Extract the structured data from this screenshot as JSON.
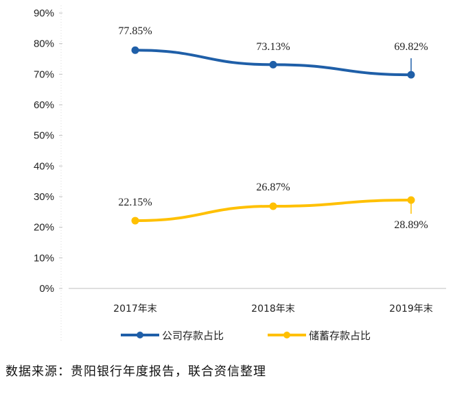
{
  "chart_data": {
    "type": "line",
    "categories": [
      "2017年末",
      "2018年末",
      "2019年末"
    ],
    "series": [
      {
        "name": "公司存款占比",
        "values": [
          77.85,
          73.13,
          69.82
        ],
        "labels": [
          "77.85%",
          "73.13%",
          "69.82%"
        ],
        "color": "#1f5fa8"
      },
      {
        "name": "储蓄存款占比",
        "values": [
          22.15,
          26.87,
          28.89
        ],
        "labels": [
          "22.15%",
          "26.87%",
          "28.89%"
        ],
        "color": "#ffc000"
      }
    ],
    "ylim": [
      0,
      90
    ],
    "yticks": [
      "0%",
      "10%",
      "20%",
      "30%",
      "40%",
      "50%",
      "60%",
      "70%",
      "80%",
      "90%"
    ],
    "grid": false,
    "legend": "bottom"
  },
  "source": "数据来源：贵阳银行年度报告，联合资信整理"
}
